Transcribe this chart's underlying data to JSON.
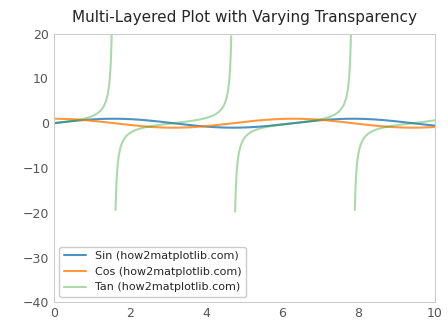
{
  "title": "Multi-Layered Plot with Varying Transparency",
  "xlim": [
    0,
    10
  ],
  "ylim": [
    -40,
    20
  ],
  "sin_color": "#1f77b4",
  "cos_color": "#ff7f0e",
  "tan_color": "#2ca02c",
  "sin_alpha": 0.8,
  "cos_alpha": 0.8,
  "tan_alpha": 0.4,
  "sin_label": "Sin (how2matplotlib.com)",
  "cos_label": "Cos (how2matplotlib.com)",
  "tan_label": "Tan (how2matplotlib.com)",
  "sin_linewidth": 1.5,
  "cos_linewidth": 1.5,
  "tan_linewidth": 1.5,
  "tan_clip": 20,
  "legend_loc": "lower left",
  "figsize": [
    4.48,
    3.36
  ],
  "dpi": 100,
  "bg_color": "#f8f8f8",
  "spine_color": "#cccccc",
  "title_fontsize": 11
}
